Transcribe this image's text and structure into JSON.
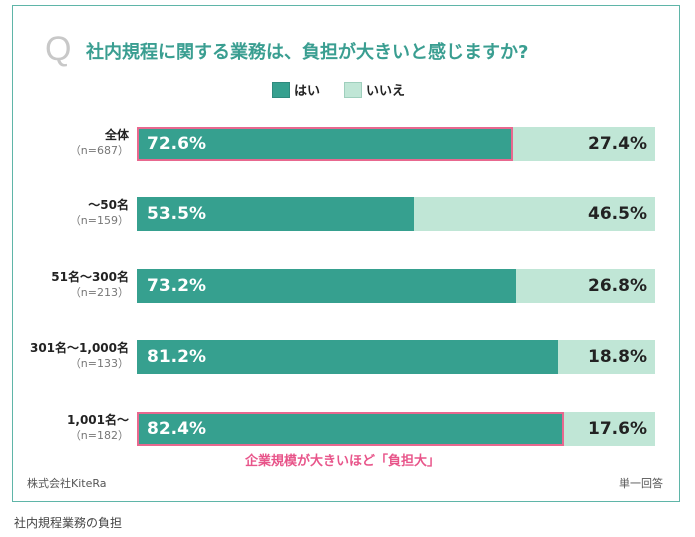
{
  "chart_data": {
    "type": "bar",
    "title": "社内規程に関する業務は、負担が大きいと感じますか?",
    "q_mark": "Q",
    "legend": [
      {
        "name": "はい",
        "color": "#36a08f"
      },
      {
        "name": "いいえ",
        "color": "#c0e6d6"
      }
    ],
    "categories": [
      {
        "group": "全体",
        "n": "（n=687）"
      },
      {
        "group": "〜50名",
        "n": "（n=159）"
      },
      {
        "group": "51名〜300名",
        "n": "（n=213）"
      },
      {
        "group": "301名〜1,000名",
        "n": "（n=133）"
      },
      {
        "group": "1,001名〜",
        "n": "（n=182）"
      }
    ],
    "series": [
      {
        "name": "はい",
        "values": [
          72.6,
          53.5,
          73.2,
          81.2,
          82.4
        ],
        "labels": [
          "72.6%",
          "53.5%",
          "73.2%",
          "81.2%",
          "82.4%"
        ]
      },
      {
        "name": "いいえ",
        "values": [
          27.4,
          46.5,
          26.8,
          18.8,
          17.6
        ],
        "labels": [
          "27.4%",
          "46.5%",
          "26.8%",
          "18.8%",
          "17.6%"
        ]
      }
    ],
    "highlighted": [
      0,
      4
    ],
    "annotation": "企業規模が大きいほど「負担大」",
    "source": "株式会社KiteRa",
    "answer_type": "単一回答",
    "xlim": [
      0,
      100
    ]
  },
  "caption": "社内規程業務の負担"
}
